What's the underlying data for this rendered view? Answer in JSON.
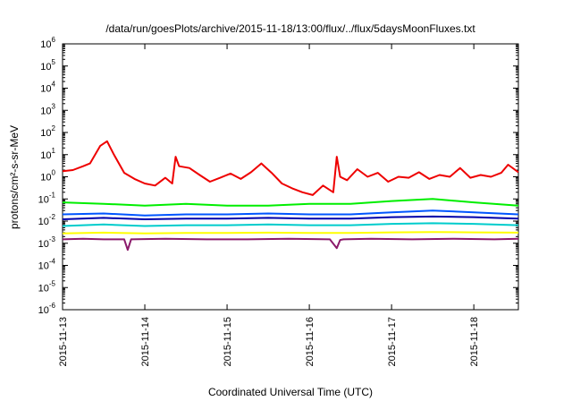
{
  "chart_data": {
    "type": "line",
    "title": "/data/run/goesPlots/archive/2015-11-18/13:00/flux/../flux/5daysMoonFluxes.txt",
    "xlabel": "Coordinated Universal Time (UTC)",
    "ylabel": "protons/cm²-s-sr-MeV",
    "y_scale": "log",
    "ylim": [
      1e-06,
      1000000.0
    ],
    "xlim": [
      "2015-11-13",
      "2015-11-18 13:00"
    ],
    "x_ticks": [
      "2015-11-13",
      "2015-11-14",
      "2015-11-15",
      "2015-11-16",
      "2015-11-17",
      "2015-11-18"
    ],
    "y_ticks": [
      {
        "base": "10",
        "exp": "-6"
      },
      {
        "base": "10",
        "exp": "-5"
      },
      {
        "base": "10",
        "exp": "-4"
      },
      {
        "base": "10",
        "exp": "-3"
      },
      {
        "base": "10",
        "exp": "-2"
      },
      {
        "base": "10",
        "exp": "-1"
      },
      {
        "base": "10",
        "exp": "0"
      },
      {
        "base": "10",
        "exp": "1"
      },
      {
        "base": "10",
        "exp": "2"
      },
      {
        "base": "10",
        "exp": "3"
      },
      {
        "base": "10",
        "exp": "4"
      },
      {
        "base": "10",
        "exp": "5"
      },
      {
        "base": "10",
        "exp": "6"
      }
    ],
    "grid": false,
    "legend": "none",
    "series": [
      {
        "color": "#ee0000",
        "x": [
          "2015-11-13 00:00",
          "2015-11-13 03:00",
          "2015-11-13 06:00",
          "2015-11-13 08:00",
          "2015-11-13 11:00",
          "2015-11-13 13:00",
          "2015-11-13 15:00",
          "2015-11-13 18:00",
          "2015-11-13 21:00",
          "2015-11-14 00:00",
          "2015-11-14 03:00",
          "2015-11-14 06:00",
          "2015-11-14 08:00",
          "2015-11-14 09:00",
          "2015-11-14 10:00",
          "2015-11-14 13:00",
          "2015-11-14 16:00",
          "2015-11-14 19:00",
          "2015-11-14 22:00",
          "2015-11-15 01:00",
          "2015-11-15 04:00",
          "2015-11-15 07:00",
          "2015-11-15 10:00",
          "2015-11-15 13:00",
          "2015-11-15 16:00",
          "2015-11-15 19:00",
          "2015-11-15 22:00",
          "2015-11-16 01:00",
          "2015-11-16 04:00",
          "2015-11-16 07:00",
          "2015-11-16 08:00",
          "2015-11-16 09:00",
          "2015-11-16 11:00",
          "2015-11-16 14:00",
          "2015-11-16 17:00",
          "2015-11-16 20:00",
          "2015-11-16 23:00",
          "2015-11-17 02:00",
          "2015-11-17 05:00",
          "2015-11-17 08:00",
          "2015-11-17 11:00",
          "2015-11-17 14:00",
          "2015-11-17 17:00",
          "2015-11-17 20:00",
          "2015-11-17 23:00",
          "2015-11-18 02:00",
          "2015-11-18 05:00",
          "2015-11-18 08:00",
          "2015-11-18 10:00",
          "2015-11-18 13:00"
        ],
        "values": [
          1.8,
          2.0,
          3.0,
          4.0,
          25,
          40,
          10,
          1.5,
          0.8,
          0.5,
          0.4,
          0.9,
          0.5,
          8.0,
          3.0,
          2.5,
          1.2,
          0.6,
          0.9,
          1.4,
          0.8,
          1.6,
          4.0,
          1.5,
          0.5,
          0.3,
          0.2,
          0.15,
          0.4,
          0.2,
          8.0,
          1.0,
          0.7,
          2.2,
          1.0,
          1.5,
          0.6,
          1.0,
          0.9,
          1.6,
          0.8,
          1.2,
          1.0,
          2.5,
          0.9,
          1.2,
          1.0,
          1.5,
          3.5,
          1.6
        ]
      },
      {
        "color": "#00ee00",
        "x": [
          "2015-11-13 00:00",
          "2015-11-13 12:00",
          "2015-11-14 00:00",
          "2015-11-14 12:00",
          "2015-11-15 00:00",
          "2015-11-15 12:00",
          "2015-11-16 00:00",
          "2015-11-16 12:00",
          "2015-11-17 00:00",
          "2015-11-17 12:00",
          "2015-11-18 00:00",
          "2015-11-18 13:00"
        ],
        "values": [
          0.07,
          0.06,
          0.05,
          0.06,
          0.05,
          0.05,
          0.06,
          0.06,
          0.08,
          0.1,
          0.07,
          0.05
        ]
      },
      {
        "color": "#0055ff",
        "x": [
          "2015-11-13 00:00",
          "2015-11-13 12:00",
          "2015-11-14 00:00",
          "2015-11-14 12:00",
          "2015-11-15 00:00",
          "2015-11-15 12:00",
          "2015-11-16 00:00",
          "2015-11-16 12:00",
          "2015-11-17 00:00",
          "2015-11-17 12:00",
          "2015-11-18 00:00",
          "2015-11-18 13:00"
        ],
        "values": [
          0.02,
          0.022,
          0.018,
          0.02,
          0.02,
          0.022,
          0.02,
          0.02,
          0.025,
          0.03,
          0.025,
          0.02
        ]
      },
      {
        "color": "#0000aa",
        "x": [
          "2015-11-13 00:00",
          "2015-11-13 12:00",
          "2015-11-14 00:00",
          "2015-11-14 12:00",
          "2015-11-15 00:00",
          "2015-11-15 12:00",
          "2015-11-16 00:00",
          "2015-11-16 12:00",
          "2015-11-17 00:00",
          "2015-11-17 12:00",
          "2015-11-18 00:00",
          "2015-11-18 13:00"
        ],
        "values": [
          0.012,
          0.014,
          0.012,
          0.013,
          0.013,
          0.014,
          0.013,
          0.013,
          0.015,
          0.016,
          0.015,
          0.013
        ]
      },
      {
        "color": "#00cccc",
        "x": [
          "2015-11-13 00:00",
          "2015-11-13 12:00",
          "2015-11-14 00:00",
          "2015-11-14 12:00",
          "2015-11-15 00:00",
          "2015-11-15 12:00",
          "2015-11-16 00:00",
          "2015-11-16 12:00",
          "2015-11-17 00:00",
          "2015-11-17 12:00",
          "2015-11-18 00:00",
          "2015-11-18 13:00"
        ],
        "values": [
          0.006,
          0.007,
          0.006,
          0.0065,
          0.0065,
          0.007,
          0.0065,
          0.0065,
          0.0075,
          0.008,
          0.0075,
          0.0065
        ]
      },
      {
        "color": "#ffff00",
        "x": [
          "2015-11-13 00:00",
          "2015-11-13 12:00",
          "2015-11-14 00:00",
          "2015-11-14 12:00",
          "2015-11-15 00:00",
          "2015-11-15 12:00",
          "2015-11-16 00:00",
          "2015-11-16 12:00",
          "2015-11-17 00:00",
          "2015-11-17 12:00",
          "2015-11-18 00:00",
          "2015-11-18 13:00"
        ],
        "values": [
          0.0028,
          0.003,
          0.0028,
          0.0029,
          0.0029,
          0.003,
          0.0029,
          0.0029,
          0.0031,
          0.0032,
          0.0031,
          0.003
        ]
      },
      {
        "color": "#8b1a6b",
        "x": [
          "2015-11-13 00:00",
          "2015-11-13 06:00",
          "2015-11-13 12:00",
          "2015-11-13 18:00",
          "2015-11-13 19:00",
          "2015-11-13 20:00",
          "2015-11-14 06:00",
          "2015-11-14 18:00",
          "2015-11-15 06:00",
          "2015-11-15 18:00",
          "2015-11-16 06:00",
          "2015-11-16 08:00",
          "2015-11-16 09:00",
          "2015-11-16 10:00",
          "2015-11-16 18:00",
          "2015-11-17 06:00",
          "2015-11-17 18:00",
          "2015-11-18 06:00",
          "2015-11-18 13:00"
        ],
        "values": [
          0.0015,
          0.0016,
          0.0015,
          0.0015,
          0.0005,
          0.0015,
          0.0016,
          0.0015,
          0.0015,
          0.0016,
          0.0015,
          0.0006,
          0.0014,
          0.0015,
          0.0016,
          0.0015,
          0.0016,
          0.0015,
          0.0016
        ]
      }
    ]
  }
}
